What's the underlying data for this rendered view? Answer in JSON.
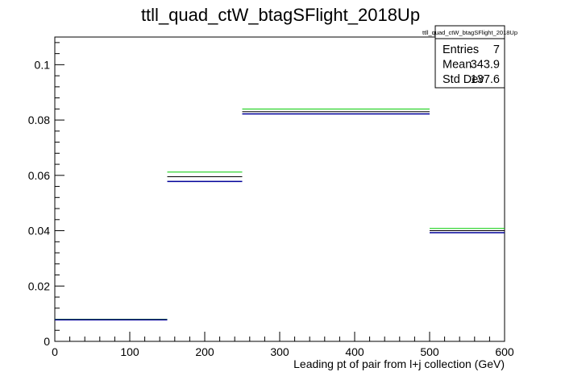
{
  "chart_data": {
    "type": "histogram",
    "title": "ttll_quad_ctW_btagSFlight_2018Up",
    "xlabel": "Leading pt of pair from l+j collection (GeV)",
    "ylabel": "",
    "xlim": [
      0,
      600
    ],
    "ylim": [
      0,
      0.11
    ],
    "x_ticks": [
      0,
      100,
      200,
      300,
      400,
      500,
      600
    ],
    "x_tick_labels": [
      "0",
      "100",
      "200",
      "300",
      "400",
      "500",
      "600"
    ],
    "y_ticks": [
      0,
      0.02,
      0.04,
      0.06,
      0.08,
      0.1
    ],
    "y_tick_labels": [
      "0",
      "0.02",
      "0.04",
      "0.06",
      "0.08",
      "0.1"
    ],
    "bin_edges": [
      0,
      150,
      250,
      500,
      600
    ],
    "series": [
      {
        "color": "#00cc00",
        "values": [
          0.008,
          0.0612,
          0.084,
          0.0408
        ]
      },
      {
        "color": "#000000",
        "values": [
          0.0079,
          0.0595,
          0.083,
          0.04
        ]
      },
      {
        "color": "#000099",
        "values": [
          0.0078,
          0.0578,
          0.0822,
          0.0393
        ]
      }
    ],
    "stats": {
      "name": "ttll_quad_ctW_btagSFlight_2018Up",
      "rows": [
        {
          "label": "Entries",
          "value": "7"
        },
        {
          "label": "Mean",
          "value": "343.9"
        },
        {
          "label": "Std Dev",
          "value": "137.6"
        }
      ]
    },
    "grid": false,
    "legend": "none"
  }
}
